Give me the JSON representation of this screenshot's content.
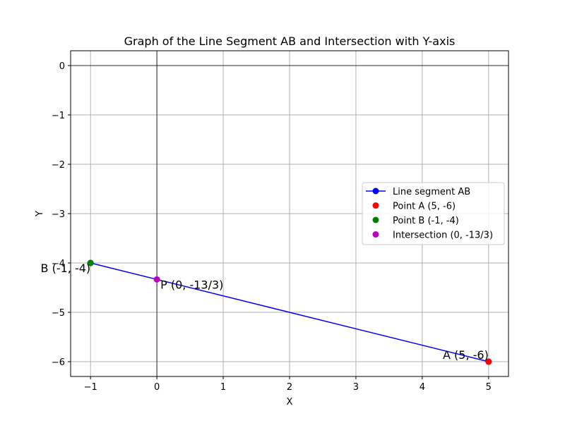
{
  "chart_data": {
    "type": "line",
    "title": "Graph of the Line Segment AB and Intersection with Y-axis",
    "xlabel": "X",
    "ylabel": "Y",
    "xlim": [
      -1.3,
      5.3
    ],
    "ylim": [
      -6.3,
      0.3
    ],
    "xticks": [
      -1,
      0,
      1,
      2,
      3,
      4,
      5
    ],
    "xtick_labels": [
      "−1",
      "0",
      "1",
      "2",
      "3",
      "4",
      "5"
    ],
    "yticks": [
      0,
      -1,
      -2,
      -3,
      -4,
      -5,
      -6
    ],
    "ytick_labels": [
      "0",
      "−1",
      "−2",
      "−3",
      "−4",
      "−5",
      "−6"
    ],
    "grid": true,
    "reference_lines": {
      "x0": true,
      "y0": true
    },
    "legend_position": "center-right",
    "series": [
      {
        "name": "Line segment AB",
        "kind": "line",
        "color": "#0000ff",
        "x": [
          5,
          -1
        ],
        "y": [
          -6,
          -4
        ]
      },
      {
        "name": "Point A (5, -6)",
        "kind": "point",
        "color": "#ff0000",
        "x": [
          5
        ],
        "y": [
          -6
        ]
      },
      {
        "name": "Point B (-1, -4)",
        "kind": "point",
        "color": "#008000",
        "x": [
          -1
        ],
        "y": [
          -4
        ]
      },
      {
        "name": "Intersection (0, -13/3)",
        "kind": "point",
        "color": "#bf00bf",
        "x": [
          0
        ],
        "y": [
          -4.3333
        ]
      }
    ],
    "annotations": [
      {
        "text": "A (5, -6)",
        "x": 5,
        "y": -6,
        "anchor": "end"
      },
      {
        "text": "B (-1, -4)",
        "x": -1,
        "y": -4,
        "anchor": "end"
      },
      {
        "text": "P (0, -13/3)",
        "x": 0,
        "y": -4.3333,
        "anchor": "start"
      }
    ]
  }
}
